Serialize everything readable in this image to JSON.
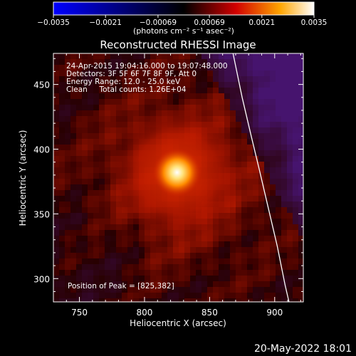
{
  "colorbar": {
    "tick_labels": [
      "−0.0035",
      "−0.0021",
      "−0.00069",
      "0.00069",
      "0.0021",
      "0.0035"
    ],
    "tick_values": [
      -0.0035,
      -0.0021,
      -0.00069,
      0.00069,
      0.0021,
      0.0035
    ],
    "range": [
      -0.0035,
      0.0035
    ],
    "units_text": "(photons cm⁻² s⁻¹ asec⁻²)"
  },
  "chart_data": {
    "type": "heatmap",
    "title": "Reconstructed RHESSI Image",
    "xlabel": "Heliocentric X (arcsec)",
    "ylabel": "Heliocentric Y (arcsec)",
    "xlim": [
      730,
      922
    ],
    "ylim": [
      282,
      474
    ],
    "x_ticks": [
      750,
      800,
      850,
      900
    ],
    "y_ticks": [
      300,
      350,
      400,
      450
    ],
    "x_tick_labels": [
      "750",
      "800",
      "850",
      "900"
    ],
    "y_tick_labels": [
      "300",
      "350",
      "400",
      "450"
    ],
    "peak": [
      825,
      382
    ],
    "limb": [
      [
        868,
        474
      ],
      [
        875,
        440
      ],
      [
        882,
        410
      ],
      [
        888,
        385
      ],
      [
        895,
        355
      ],
      [
        902,
        325
      ],
      [
        908,
        295
      ],
      [
        911,
        282
      ]
    ],
    "colormap": [
      "#0000ff",
      "#000000",
      "#d10000",
      "#ffa500",
      "#ffffff"
    ]
  },
  "annotations": {
    "time": "24-Apr-2015 19:04:16.000 to 19:07:48.000",
    "detectors": "Detectors: 3F 5F 6F 7F 8F 9F, Att 0",
    "energy": "Energy Range: 12.0 - 25.0 keV",
    "method": "Clean     Total counts: 1.26E+04",
    "peak_text": "Position of Peak = [825,382]"
  },
  "footer": {
    "date": "20-May-2022 18:01"
  }
}
